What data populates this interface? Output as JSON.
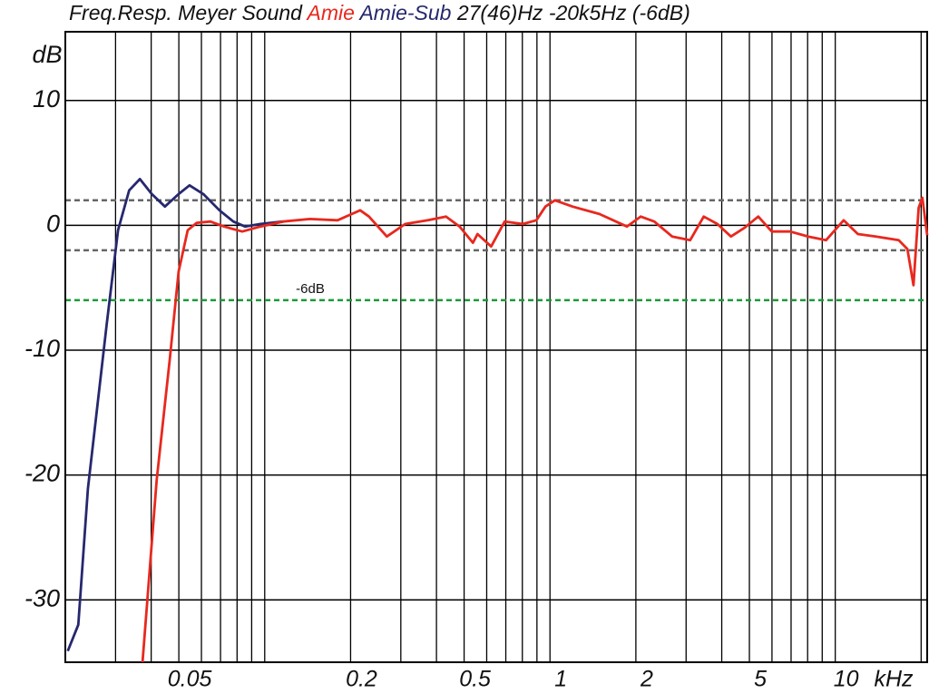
{
  "chart_data": {
    "type": "line",
    "title": "Freq.Resp. Meyer Sound",
    "subtitle": "27(46)Hz -20k5Hz (-6dB)",
    "y_label": "dB",
    "x_label": "kHz",
    "log_x": true,
    "xlim": [
      0.02,
      21
    ],
    "ylim": [
      -35,
      15.5
    ],
    "xticks": [
      0.05,
      0.2,
      0.5,
      1,
      2,
      5,
      10
    ],
    "yticks": [
      10,
      0,
      -10,
      -20,
      -30
    ],
    "x_grid": [
      0.03,
      0.04,
      0.05,
      0.06,
      0.07,
      0.08,
      0.09,
      0.1,
      0.2,
      0.3,
      0.4,
      0.5,
      0.6,
      0.7,
      0.8,
      0.9,
      1,
      2,
      3,
      4,
      5,
      6,
      7,
      8,
      9,
      10,
      20
    ],
    "reference_lines": [
      {
        "value": 2,
        "color": "#666666"
      },
      {
        "value": -2,
        "color": "#666666"
      },
      {
        "value": -6,
        "color": "#1a9a3a",
        "label": "-6dB"
      }
    ],
    "series": [
      {
        "name": "Amie",
        "color": "#e8281e",
        "x": [
          0.0373,
          0.0418,
          0.0464,
          0.0499,
          0.0537,
          0.0578,
          0.0645,
          0.072,
          0.0834,
          0.0966,
          0.116,
          0.144,
          0.18,
          0.216,
          0.232,
          0.268,
          0.311,
          0.373,
          0.432,
          0.482,
          0.537,
          0.557,
          0.622,
          0.694,
          0.803,
          0.896,
          0.964,
          1.04,
          1.2,
          1.49,
          1.86,
          2.08,
          2.32,
          2.68,
          3.1,
          3.46,
          3.86,
          4.31,
          4.81,
          5.37,
          5.99,
          6.94,
          8.03,
          9.28,
          10.7,
          12,
          13.9,
          16.7,
          17.9,
          18.8,
          19.6,
          20.2,
          21
        ],
        "values": [
          -35,
          -20.4,
          -10.9,
          -3.7,
          -0.4,
          0.2,
          0.3,
          -0.1,
          -0.5,
          -0.1,
          0.3,
          0.5,
          0.4,
          1.2,
          0.7,
          -0.9,
          0.1,
          0.4,
          0.7,
          -0.1,
          -1.4,
          -0.7,
          -1.7,
          0.3,
          0.1,
          0.4,
          1.5,
          2.0,
          1.5,
          0.9,
          -0.1,
          0.7,
          0.3,
          -0.9,
          -1.2,
          0.7,
          0.1,
          -0.9,
          -0.2,
          0.7,
          -0.5,
          -0.5,
          -0.9,
          -1.2,
          0.4,
          -0.7,
          -0.9,
          -1.2,
          -1.9,
          -4.8,
          1.4,
          2.2,
          -0.8
        ]
      },
      {
        "name": "Amie-Sub",
        "color": "#26286e",
        "x": [
          0.0204,
          0.0222,
          0.024,
          0.0279,
          0.0306,
          0.0335,
          0.0365,
          0.0402,
          0.0447,
          0.0499,
          0.0545,
          0.0609,
          0.0694,
          0.0776,
          0.0853,
          0.0966,
          0.116
        ],
        "values": [
          -34.1,
          -32,
          -21.1,
          -8,
          -0.4,
          2.8,
          3.7,
          2.5,
          1.5,
          2.5,
          3.2,
          2.5,
          1.2,
          0.3,
          -0.1,
          0.1,
          0.3
        ]
      }
    ]
  }
}
